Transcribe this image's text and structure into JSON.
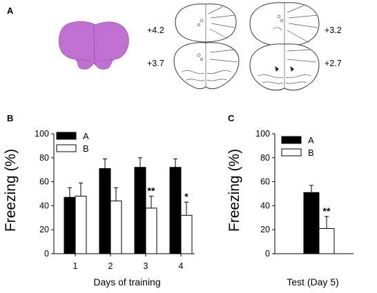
{
  "panel_a": {
    "letter": "A",
    "coordinates": [
      "+4.2",
      "+3.2",
      "+3.7",
      "+2.7"
    ]
  },
  "panel_b": {
    "letter": "B",
    "legend": [
      "A",
      "B"
    ]
  },
  "panel_c": {
    "letter": "C",
    "legend": [
      "A",
      "B"
    ]
  },
  "colors": {
    "series_a": "#000000",
    "series_b": "#ffffff",
    "brain_stain": "#c070d0"
  },
  "chart_data": [
    {
      "type": "bar",
      "xlabel": "Days of training",
      "ylabel": "Freezing (%)",
      "ylim": [
        0,
        100
      ],
      "yticks": [
        "0",
        "20",
        "40",
        "60",
        "80",
        "100"
      ],
      "categories": [
        "1",
        "2",
        "3",
        "4"
      ],
      "series": [
        {
          "name": "A",
          "values": [
            47,
            71,
            72,
            72
          ],
          "errors": [
            8,
            8,
            8,
            7
          ]
        },
        {
          "name": "B",
          "values": [
            48,
            44,
            38,
            32
          ],
          "errors": [
            11,
            11,
            10,
            11
          ]
        }
      ],
      "significance": [
        {
          "category": "3",
          "series": "B",
          "label": "**"
        },
        {
          "category": "4",
          "series": "B",
          "label": "*"
        }
      ],
      "legend": "top-left"
    },
    {
      "type": "bar",
      "xlabel": "Test (Day 5)",
      "ylabel": "Freezing (%)",
      "ylim": [
        0,
        100
      ],
      "yticks": [
        "0",
        "20",
        "40",
        "60",
        "80",
        "100"
      ],
      "categories": [
        ""
      ],
      "series": [
        {
          "name": "A",
          "values": [
            51
          ],
          "errors": [
            6
          ]
        },
        {
          "name": "B",
          "values": [
            21
          ],
          "errors": [
            10
          ]
        }
      ],
      "significance": [
        {
          "category": "",
          "series": "B",
          "label": "**"
        }
      ],
      "legend": "top-left"
    }
  ]
}
